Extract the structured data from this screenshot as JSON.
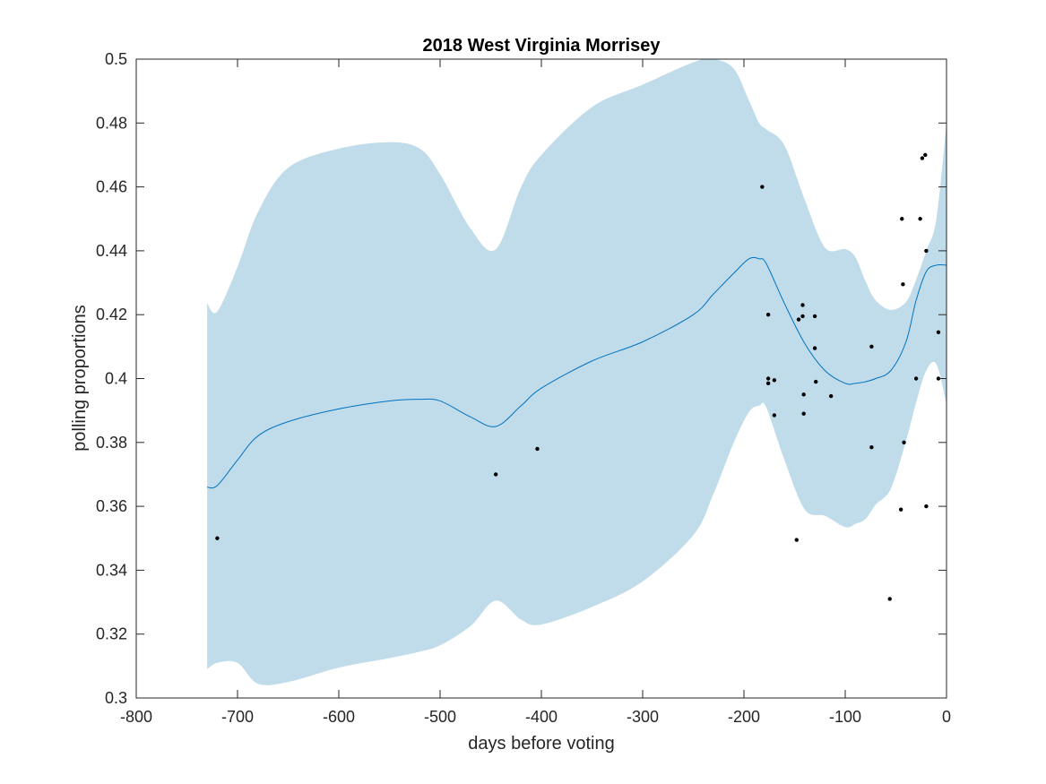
{
  "chart_data": {
    "type": "line",
    "title": "2018 West Virginia Morrisey",
    "xlabel": "days before voting",
    "ylabel": "polling proportions",
    "xlim": [
      -800,
      0
    ],
    "ylim": [
      0.3,
      0.5
    ],
    "xticks": [
      -800,
      -700,
      -600,
      -500,
      -400,
      -300,
      -200,
      -100,
      0
    ],
    "xtick_labels": [
      "-800",
      "-700",
      "-600",
      "-500",
      "-400",
      "-300",
      "-200",
      "-100",
      "0"
    ],
    "yticks": [
      0.3,
      0.32,
      0.34,
      0.36,
      0.38,
      0.4,
      0.42,
      0.44,
      0.46,
      0.48,
      0.5
    ],
    "ytick_labels": [
      "0.3",
      "0.32",
      "0.34",
      "0.36",
      "0.38",
      "0.4",
      "0.42",
      "0.44",
      "0.46",
      "0.48",
      "0.5"
    ],
    "grid": false,
    "colors": {
      "band": "#c0dcea",
      "line": "#0072bd",
      "points": "#000000",
      "axes": "#262626"
    },
    "band": {
      "x": [
        -730,
        -720,
        -700,
        -680,
        -650,
        -600,
        -550,
        -520,
        -500,
        -470,
        -445,
        -420,
        -400,
        -350,
        -300,
        -250,
        -230,
        -210,
        -195,
        -185,
        -178,
        -160,
        -140,
        -120,
        -100,
        -90,
        -80,
        -70,
        -55,
        -40,
        -30,
        -20,
        -10,
        0
      ],
      "upper": [
        0.4235,
        0.421,
        0.435,
        0.452,
        0.466,
        0.472,
        0.474,
        0.472,
        0.464,
        0.447,
        0.4405,
        0.46,
        0.47,
        0.485,
        0.492,
        0.499,
        0.5,
        0.497,
        0.487,
        0.48,
        0.478,
        0.473,
        0.456,
        0.441,
        0.4405,
        0.438,
        0.4305,
        0.4245,
        0.4215,
        0.424,
        0.431,
        0.44,
        0.45,
        0.48
      ],
      "lower": [
        0.309,
        0.311,
        0.311,
        0.3045,
        0.305,
        0.3095,
        0.3125,
        0.3145,
        0.3165,
        0.3225,
        0.3305,
        0.3245,
        0.323,
        0.3285,
        0.3365,
        0.351,
        0.364,
        0.38,
        0.3895,
        0.3915,
        0.391,
        0.3745,
        0.359,
        0.357,
        0.3535,
        0.3545,
        0.356,
        0.3605,
        0.3655,
        0.3805,
        0.3925,
        0.4025,
        0.4045,
        0.392
      ]
    },
    "series": [
      {
        "x": [
          -730,
          -720,
          -700,
          -680,
          -650,
          -600,
          -550,
          -520,
          -500,
          -470,
          -445,
          -420,
          -400,
          -350,
          -300,
          -250,
          -230,
          -210,
          -195,
          -185,
          -178,
          -160,
          -140,
          -120,
          -100,
          -90,
          -80,
          -70,
          -55,
          -40,
          -30,
          -20,
          -10,
          0
        ],
        "values": [
          0.366,
          0.3665,
          0.3745,
          0.382,
          0.3865,
          0.3905,
          0.393,
          0.3935,
          0.393,
          0.388,
          0.385,
          0.3915,
          0.397,
          0.4055,
          0.4115,
          0.42,
          0.4265,
          0.433,
          0.4375,
          0.4375,
          0.436,
          0.4235,
          0.411,
          0.4025,
          0.3985,
          0.3985,
          0.399,
          0.4,
          0.4025,
          0.4115,
          0.4245,
          0.4335,
          0.4355,
          0.4355
        ]
      }
    ],
    "points": [
      [
        -720,
        0.35
      ],
      [
        -445,
        0.37
      ],
      [
        -404,
        0.378
      ],
      [
        -182,
        0.46
      ],
      [
        -176,
        0.42
      ],
      [
        -176,
        0.4
      ],
      [
        -176,
        0.3985
      ],
      [
        -170,
        0.3995
      ],
      [
        -170,
        0.3885
      ],
      [
        -148,
        0.3495
      ],
      [
        -146,
        0.4185
      ],
      [
        -142,
        0.423
      ],
      [
        -142,
        0.4195
      ],
      [
        -141,
        0.395
      ],
      [
        -141,
        0.389
      ],
      [
        -130,
        0.4195
      ],
      [
        -130,
        0.4095
      ],
      [
        -129,
        0.399
      ],
      [
        -114,
        0.3945
      ],
      [
        -74,
        0.41
      ],
      [
        -74,
        0.3785
      ],
      [
        -56,
        0.331
      ],
      [
        -45,
        0.359
      ],
      [
        -44,
        0.45
      ],
      [
        -43,
        0.4295
      ],
      [
        -42,
        0.38
      ],
      [
        -30,
        0.4
      ],
      [
        -26,
        0.45
      ],
      [
        -24,
        0.469
      ],
      [
        -21,
        0.47
      ],
      [
        -20,
        0.44
      ],
      [
        -20,
        0.36
      ],
      [
        -8,
        0.4
      ],
      [
        -8,
        0.4145
      ]
    ]
  }
}
